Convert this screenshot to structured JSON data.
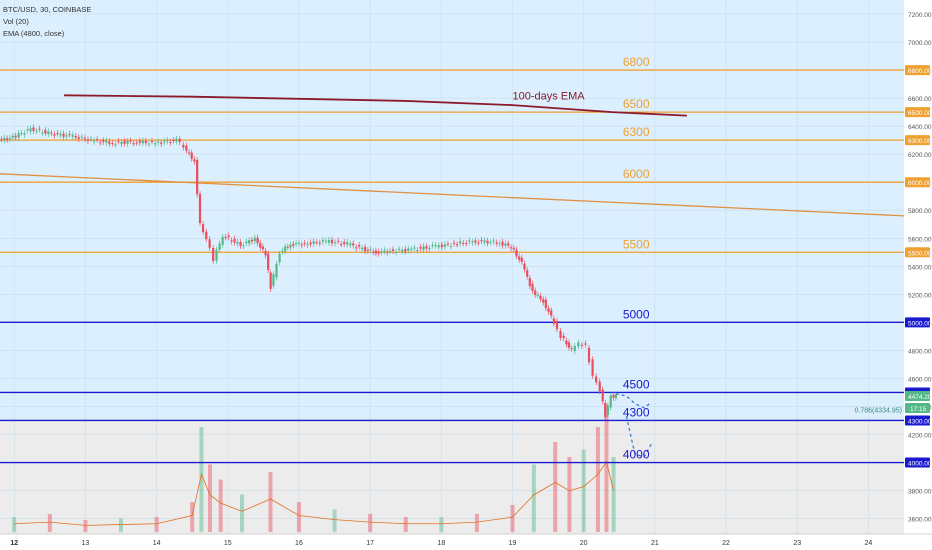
{
  "header": {
    "symbol": "BTC/USD, 30, COINBASE",
    "indicator_vol": "Vol (20)",
    "indicator_ema": "EMA (4800, close)"
  },
  "colors": {
    "bull": "#53b987",
    "bear": "#eb4d5c",
    "orange_level": "#f0a030",
    "blue_level": "#1a1ad0",
    "ema_line": "#8b1a2a",
    "trend_line": "#e09040",
    "projection": "#3070d0",
    "bg_upper": "#dcefff",
    "bg_lower": "#ececec"
  },
  "chart_data": {
    "type": "candlestick",
    "x_ticks": [
      "12",
      "13",
      "14",
      "15",
      "16",
      "17",
      "18",
      "19",
      "20",
      "21",
      "22",
      "23",
      "24"
    ],
    "y_ticks": [
      "7200.00",
      "7000.00",
      "6800.00",
      "6600.00",
      "6400.00",
      "6200.00",
      "6000.00",
      "5800.00",
      "5600.00",
      "5400.00",
      "5200.00",
      "5000.00",
      "4800.00",
      "4600.00",
      "4400.00",
      "4200.00",
      "4000.00",
      "3800.00",
      "3600.00"
    ],
    "ylim": [
      3490,
      7300
    ],
    "levels": [
      {
        "value": 6800,
        "label": "6800",
        "tag": "6800.00",
        "color": "orange"
      },
      {
        "value": 6500,
        "label": "6500",
        "tag": "6500.00",
        "color": "orange"
      },
      {
        "value": 6300,
        "label": "6300",
        "tag": "6300.00",
        "color": "orange"
      },
      {
        "value": 6000,
        "label": "6000",
        "tag": "6000.00",
        "color": "orange"
      },
      {
        "value": 5500,
        "label": "5500",
        "tag": "5500.00",
        "color": "orange"
      },
      {
        "value": 5000,
        "label": "5000",
        "tag": "5000.00",
        "color": "blue"
      },
      {
        "value": 4500,
        "label": "4500",
        "tag": "4500.00",
        "color": "blue"
      },
      {
        "value": 4300,
        "label": "4300",
        "tag": "4300.00",
        "color": "blue"
      },
      {
        "value": 4000,
        "label": "4000",
        "tag": "4000.00",
        "color": "blue"
      }
    ],
    "price_tag": {
      "value": 4474.2,
      "label": "4474.20",
      "countdown": "17:15"
    },
    "fib_label": "0.786(4334.95)",
    "ema_annotation": "100-days EMA",
    "ema_line": [
      {
        "x": 12.7,
        "y": 6620
      },
      {
        "x": 14.5,
        "y": 6610
      },
      {
        "x": 17.5,
        "y": 6580
      },
      {
        "x": 19.0,
        "y": 6550
      },
      {
        "x": 20.4,
        "y": 6500
      },
      {
        "x": 21.45,
        "y": 6475
      }
    ],
    "trend_line": [
      {
        "x": 11.8,
        "y": 6060
      },
      {
        "x": 24.5,
        "y": 5760
      }
    ],
    "projection": [
      {
        "x": 20.45,
        "y": 4490
      },
      {
        "x": 20.6,
        "y": 4475
      },
      {
        "x": 20.72,
        "y": 4420
      },
      {
        "x": 20.85,
        "y": 4390
      },
      {
        "x": 20.95,
        "y": 4430
      }
    ],
    "projection2": [
      {
        "x": 20.6,
        "y": 4330
      },
      {
        "x": 20.72,
        "y": 4060
      },
      {
        "x": 20.85,
        "y": 4040
      },
      {
        "x": 20.97,
        "y": 4150
      }
    ],
    "price_path": [
      {
        "x": 11.8,
        "y": 6300
      },
      {
        "x": 12.0,
        "y": 6320
      },
      {
        "x": 12.25,
        "y": 6380
      },
      {
        "x": 12.5,
        "y": 6350
      },
      {
        "x": 12.8,
        "y": 6330
      },
      {
        "x": 13.1,
        "y": 6300
      },
      {
        "x": 13.4,
        "y": 6280
      },
      {
        "x": 13.7,
        "y": 6290
      },
      {
        "x": 14.0,
        "y": 6280
      },
      {
        "x": 14.3,
        "y": 6300
      },
      {
        "x": 14.4,
        "y": 6250
      },
      {
        "x": 14.55,
        "y": 6150
      },
      {
        "x": 14.63,
        "y": 5700
      },
      {
        "x": 14.72,
        "y": 5600
      },
      {
        "x": 14.82,
        "y": 5450
      },
      {
        "x": 14.95,
        "y": 5620
      },
      {
        "x": 15.2,
        "y": 5550
      },
      {
        "x": 15.4,
        "y": 5600
      },
      {
        "x": 15.55,
        "y": 5480
      },
      {
        "x": 15.62,
        "y": 5250
      },
      {
        "x": 15.75,
        "y": 5500
      },
      {
        "x": 15.9,
        "y": 5560
      },
      {
        "x": 16.1,
        "y": 5560
      },
      {
        "x": 16.4,
        "y": 5580
      },
      {
        "x": 16.7,
        "y": 5560
      },
      {
        "x": 16.95,
        "y": 5520
      },
      {
        "x": 17.1,
        "y": 5500
      },
      {
        "x": 17.3,
        "y": 5510
      },
      {
        "x": 17.6,
        "y": 5520
      },
      {
        "x": 17.9,
        "y": 5540
      },
      {
        "x": 18.2,
        "y": 5560
      },
      {
        "x": 18.5,
        "y": 5580
      },
      {
        "x": 18.8,
        "y": 5570
      },
      {
        "x": 19.0,
        "y": 5540
      },
      {
        "x": 19.15,
        "y": 5420
      },
      {
        "x": 19.3,
        "y": 5220
      },
      {
        "x": 19.45,
        "y": 5150
      },
      {
        "x": 19.6,
        "y": 5000
      },
      {
        "x": 19.7,
        "y": 4900
      },
      {
        "x": 19.85,
        "y": 4800
      },
      {
        "x": 19.95,
        "y": 4850
      },
      {
        "x": 20.05,
        "y": 4830
      },
      {
        "x": 20.15,
        "y": 4620
      },
      {
        "x": 20.25,
        "y": 4520
      },
      {
        "x": 20.32,
        "y": 4330
      },
      {
        "x": 20.4,
        "y": 4470
      },
      {
        "x": 20.47,
        "y": 4474
      }
    ],
    "volume": [
      {
        "x": 12.0,
        "v": 10
      },
      {
        "x": 12.5,
        "v": 12
      },
      {
        "x": 13.0,
        "v": 8
      },
      {
        "x": 13.5,
        "v": 9
      },
      {
        "x": 14.0,
        "v": 10
      },
      {
        "x": 14.5,
        "v": 20
      },
      {
        "x": 14.63,
        "v": 70
      },
      {
        "x": 14.75,
        "v": 45
      },
      {
        "x": 14.9,
        "v": 35
      },
      {
        "x": 15.2,
        "v": 25
      },
      {
        "x": 15.6,
        "v": 40
      },
      {
        "x": 16.0,
        "v": 20
      },
      {
        "x": 16.5,
        "v": 15
      },
      {
        "x": 17.0,
        "v": 12
      },
      {
        "x": 17.5,
        "v": 10
      },
      {
        "x": 18.0,
        "v": 10
      },
      {
        "x": 18.5,
        "v": 12
      },
      {
        "x": 19.0,
        "v": 18
      },
      {
        "x": 19.3,
        "v": 45
      },
      {
        "x": 19.6,
        "v": 60
      },
      {
        "x": 19.8,
        "v": 50
      },
      {
        "x": 20.0,
        "v": 55
      },
      {
        "x": 20.2,
        "v": 70
      },
      {
        "x": 20.32,
        "v": 85
      },
      {
        "x": 20.42,
        "v": 50
      }
    ]
  }
}
